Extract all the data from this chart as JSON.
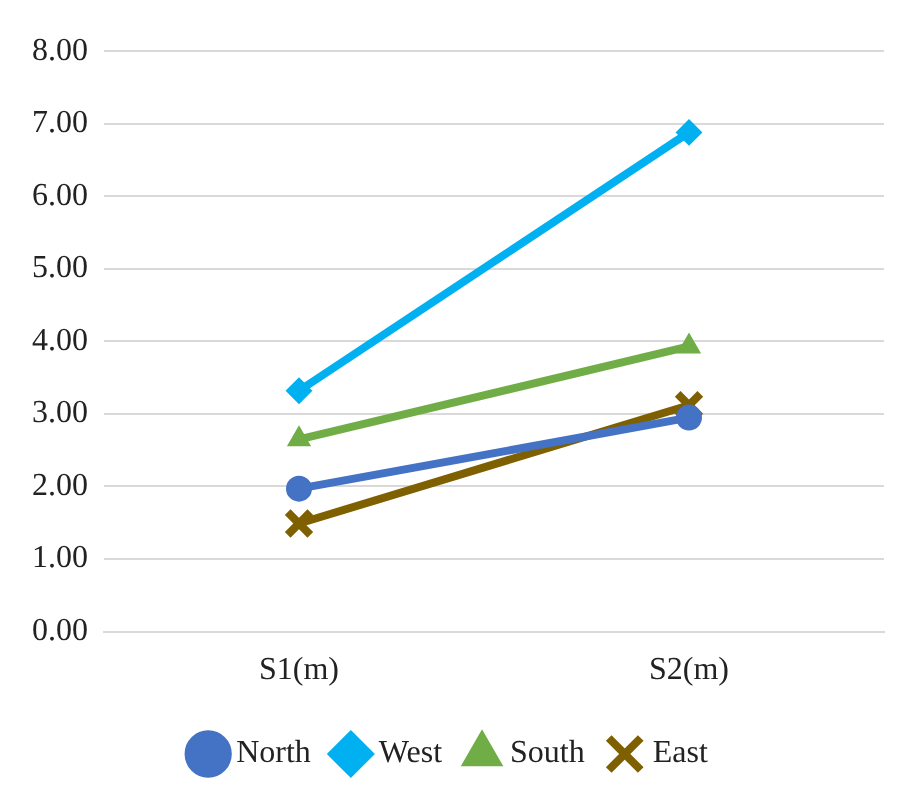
{
  "chart_data": {
    "type": "line",
    "categories": [
      "S1(m)",
      "S2(m)"
    ],
    "series": [
      {
        "name": "North",
        "color": "#4472c4",
        "values": [
          1.97,
          2.95
        ],
        "marker": "circle"
      },
      {
        "name": "West",
        "color": "#00b0f0",
        "values": [
          3.32,
          6.88
        ],
        "marker": "diamond"
      },
      {
        "name": "South",
        "color": "#70ad47",
        "values": [
          2.65,
          3.93
        ],
        "marker": "triangle"
      },
      {
        "name": "East",
        "color": "#7f6000",
        "values": [
          1.49,
          3.12
        ],
        "marker": "cross"
      }
    ],
    "ylim": [
      0,
      8
    ],
    "yticks": [
      {
        "value": 0,
        "label": "0.00"
      },
      {
        "value": 1,
        "label": "1.00"
      },
      {
        "value": 2,
        "label": "2.00"
      },
      {
        "value": 3,
        "label": "3.00"
      },
      {
        "value": 4,
        "label": "4.00"
      },
      {
        "value": 5,
        "label": "5.00"
      },
      {
        "value": 6,
        "label": "6.00"
      },
      {
        "value": 7,
        "label": "7.00"
      },
      {
        "value": 8,
        "label": "8.00"
      }
    ],
    "grid": "y",
    "legend": "bottom",
    "line_style": "solid"
  }
}
